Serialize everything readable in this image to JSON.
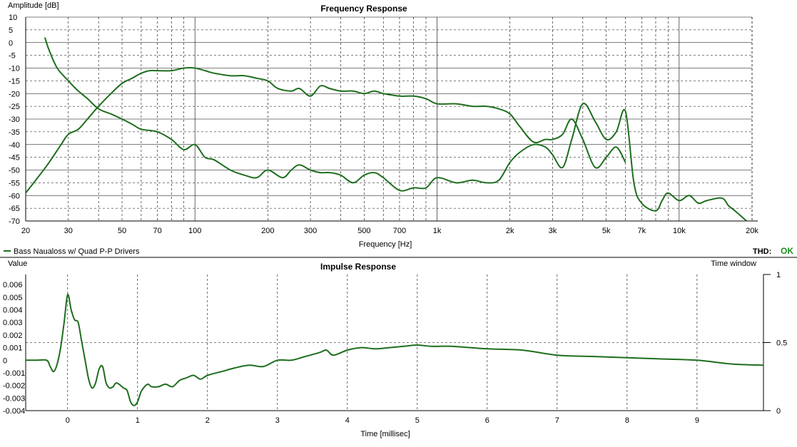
{
  "legend": {
    "label": "Bass Naualoss w/ Quad P-P Drivers",
    "color": "#1e6e1e"
  },
  "thd": {
    "label": "THD:",
    "status": "OK",
    "status_color": "#1e8e1e"
  },
  "chart_data": [
    {
      "type": "line",
      "title": "Frequency Response",
      "xlabel": "Frequency [Hz]",
      "ylabel": "Amplitude [dB]",
      "xscale": "log",
      "xlim": [
        20,
        20000
      ],
      "ylim": [
        -70,
        10
      ],
      "grid": true,
      "x_tick_labels": [
        {
          "v": 20,
          "t": "20"
        },
        {
          "v": 30,
          "t": "30"
        },
        {
          "v": 50,
          "t": "50"
        },
        {
          "v": 70,
          "t": "70"
        },
        {
          "v": 100,
          "t": "100"
        },
        {
          "v": 200,
          "t": "200"
        },
        {
          "v": 300,
          "t": "300"
        },
        {
          "v": 500,
          "t": "500"
        },
        {
          "v": 700,
          "t": "700"
        },
        {
          "v": 1000,
          "t": "1k"
        },
        {
          "v": 2000,
          "t": "2k"
        },
        {
          "v": 3000,
          "t": "3k"
        },
        {
          "v": 5000,
          "t": "5k"
        },
        {
          "v": 7000,
          "t": "7k"
        },
        {
          "v": 10000,
          "t": "10k"
        },
        {
          "v": 20000,
          "t": "20k"
        }
      ],
      "y_ticks": [
        10,
        5,
        0,
        -5,
        -10,
        -15,
        -20,
        -25,
        -30,
        -35,
        -40,
        -45,
        -50,
        -55,
        -60,
        -65,
        -70
      ],
      "series": [
        {
          "x": [
            20,
            22,
            25,
            28,
            30,
            33,
            36,
            40,
            45,
            50,
            55,
            60,
            65,
            70,
            80,
            90,
            100,
            110,
            120,
            140,
            160,
            180,
            200,
            220,
            250,
            270,
            300,
            330,
            360,
            400,
            450,
            500,
            550,
            600,
            700,
            800,
            900,
            1000,
            1200,
            1400,
            1600,
            1800,
            2000,
            2200,
            2500,
            2800,
            3000,
            3300,
            3600,
            4000,
            4500,
            5000,
            5500,
            6000
          ],
          "y": [
            -59,
            -54,
            -47,
            -40,
            -36,
            -34,
            -30,
            -25,
            -20,
            -16,
            -14,
            -12,
            -11,
            -11,
            -11,
            -10,
            -10,
            -11,
            -12,
            -13,
            -13,
            -14,
            -15,
            -18,
            -19,
            -18,
            -21,
            -17,
            -18,
            -19,
            -19,
            -20,
            -19,
            -20,
            -21,
            -21,
            -22,
            -24,
            -24,
            -25,
            -25,
            -26,
            -28,
            -33,
            -39,
            -38,
            -38,
            -36,
            -30,
            -38,
            -49,
            -45,
            -41,
            -47
          ]
        },
        {
          "x": [
            24,
            25,
            27,
            30,
            33,
            36,
            40,
            45,
            50,
            55,
            60,
            70,
            80,
            90,
            100,
            110,
            120,
            140,
            160,
            180,
            200,
            230,
            250,
            270,
            300,
            330,
            360,
            400,
            450,
            500,
            550,
            600,
            700,
            800,
            900,
            1000,
            1200,
            1400,
            1600,
            1800,
            2000,
            2200,
            2500,
            2800,
            3000,
            3300,
            3600,
            4000,
            4500,
            5000,
            5500,
            6000,
            6500,
            7000,
            8000,
            8500,
            9000,
            10000,
            11000,
            12000,
            13000,
            15000,
            16000,
            17000,
            19000
          ],
          "y": [
            2,
            -3,
            -10,
            -15,
            -19,
            -22,
            -26,
            -28,
            -30,
            -32,
            -34,
            -35,
            -38,
            -42,
            -40,
            -45,
            -46,
            -50,
            -52,
            -53,
            -50,
            -53,
            -50,
            -48,
            -50,
            -51,
            -51,
            -52,
            -55,
            -52,
            -51,
            -53,
            -58,
            -57,
            -57,
            -53,
            -55,
            -54,
            -55,
            -54,
            -47,
            -43,
            -40,
            -41,
            -44,
            -49,
            -38,
            -24,
            -31,
            -38,
            -35,
            -27,
            -55,
            -63,
            -66,
            -62,
            -59,
            -62,
            -60,
            -63,
            -62,
            -61,
            -64,
            -66,
            -70
          ]
        }
      ]
    },
    {
      "type": "line",
      "title": "Impulse Response",
      "xlabel": "Time [millisec]",
      "ylabel": "Value",
      "y2label": "Time window",
      "xlim": [
        -0.6,
        9.95
      ],
      "ylim": [
        -0.004,
        0.0068
      ],
      "y2lim": [
        0,
        1
      ],
      "grid": true,
      "x_ticks": [
        0,
        1,
        2,
        3,
        4,
        5,
        6,
        7,
        8,
        9
      ],
      "y_tick_labels": [
        {
          "v": 0.006,
          "t": "0.006"
        },
        {
          "v": 0.005,
          "t": "0.005"
        },
        {
          "v": 0.004,
          "t": "0.004"
        },
        {
          "v": 0.003,
          "t": "0.003"
        },
        {
          "v": 0.002,
          "t": "0.002"
        },
        {
          "v": 0.001,
          "t": "0.001"
        },
        {
          "v": 0,
          "t": "0"
        },
        {
          "v": -0.001,
          "t": "-0.001"
        },
        {
          "v": -0.002,
          "t": "-0.002"
        },
        {
          "v": -0.003,
          "t": "-0.003"
        },
        {
          "v": -0.004,
          "t": "-0.004"
        }
      ],
      "y2_ticks": [
        {
          "v": 1,
          "t": "1"
        },
        {
          "v": 0.5,
          "t": "0.5"
        },
        {
          "v": 0,
          "t": "0"
        }
      ],
      "series": [
        {
          "x": [
            -0.6,
            -0.45,
            -0.3,
            -0.25,
            -0.2,
            -0.15,
            -0.1,
            -0.05,
            0.0,
            0.05,
            0.1,
            0.15,
            0.2,
            0.25,
            0.3,
            0.35,
            0.4,
            0.45,
            0.5,
            0.55,
            0.6,
            0.65,
            0.7,
            0.8,
            0.85,
            0.9,
            0.95,
            1.0,
            1.05,
            1.1,
            1.15,
            1.2,
            1.3,
            1.4,
            1.5,
            1.6,
            1.7,
            1.8,
            1.9,
            2.0,
            2.2,
            2.4,
            2.6,
            2.8,
            3.0,
            3.2,
            3.4,
            3.6,
            3.7,
            3.8,
            4.0,
            4.2,
            4.4,
            4.6,
            4.8,
            5.0,
            5.2,
            5.5,
            6.0,
            6.5,
            7.0,
            7.5,
            8.0,
            8.5,
            9.0,
            9.5,
            9.95
          ],
          "y": [
            0.0,
            0.0,
            0.0,
            -0.0005,
            -0.0009,
            -0.0003,
            0.001,
            0.003,
            0.0052,
            0.004,
            0.0032,
            0.003,
            0.0015,
            0.0,
            -0.0015,
            -0.0022,
            -0.0018,
            -0.0007,
            -0.0005,
            -0.0018,
            -0.0022,
            -0.0021,
            -0.0018,
            -0.0022,
            -0.0024,
            -0.0033,
            -0.0036,
            -0.0033,
            -0.0025,
            -0.0021,
            -0.0019,
            -0.0021,
            -0.0021,
            -0.0019,
            -0.0021,
            -0.0016,
            -0.0014,
            -0.0012,
            -0.0015,
            -0.0012,
            -0.0009,
            -0.0006,
            -0.0004,
            -0.0005,
            0.0,
            0.0,
            0.0003,
            0.0006,
            0.0008,
            0.0004,
            0.0008,
            0.001,
            0.0009,
            0.001,
            0.0011,
            0.0012,
            0.0011,
            0.0011,
            0.0009,
            0.0008,
            0.0004,
            0.0003,
            0.0002,
            0.0001,
            0.0,
            -0.0003,
            -0.0004
          ]
        }
      ]
    }
  ]
}
